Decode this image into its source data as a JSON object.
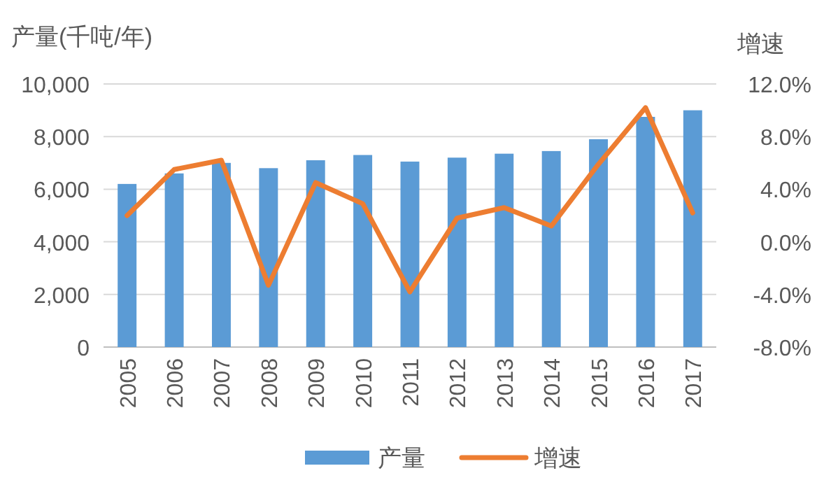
{
  "chart_data": {
    "type": "bar",
    "ylabel": "产量(千吨/年)",
    "y2label": "增速",
    "categories": [
      "2005",
      "2006",
      "2007",
      "2008",
      "2009",
      "2010",
      "2011",
      "2012",
      "2013",
      "2014",
      "2015",
      "2016",
      "2017"
    ],
    "series": [
      {
        "name": "产量",
        "color": "#5b9bd5",
        "values": [
          6200,
          6600,
          7000,
          6800,
          7100,
          7300,
          7050,
          7200,
          7350,
          7450,
          7900,
          8750,
          9000
        ]
      },
      {
        "name": "增速",
        "type": "line",
        "axis": "y2",
        "color": "#ed7d31",
        "values": [
          2.0,
          5.5,
          6.2,
          -3.3,
          4.5,
          2.9,
          -3.8,
          1.8,
          2.6,
          1.2,
          5.9,
          10.2,
          2.2
        ]
      }
    ],
    "ylim": [
      0,
      10000
    ],
    "yticks": [
      {
        "value": 0,
        "label": "0"
      },
      {
        "value": 2000,
        "label": "2,000"
      },
      {
        "value": 4000,
        "label": "4,000"
      },
      {
        "value": 6000,
        "label": "6,000"
      },
      {
        "value": 8000,
        "label": "8,000"
      },
      {
        "value": 10000,
        "label": "10,000"
      }
    ],
    "y2lim": [
      -8,
      12
    ],
    "y2ticks": [
      {
        "value": -8,
        "label": "-8.0%"
      },
      {
        "value": -4,
        "label": "-4.0%"
      },
      {
        "value": 0,
        "label": "0.0%"
      },
      {
        "value": 4,
        "label": "4.0%"
      },
      {
        "value": 8,
        "label": "8.0%"
      },
      {
        "value": 12,
        "label": "12.0%"
      }
    ],
    "grid": "y",
    "legend": "bottom"
  }
}
